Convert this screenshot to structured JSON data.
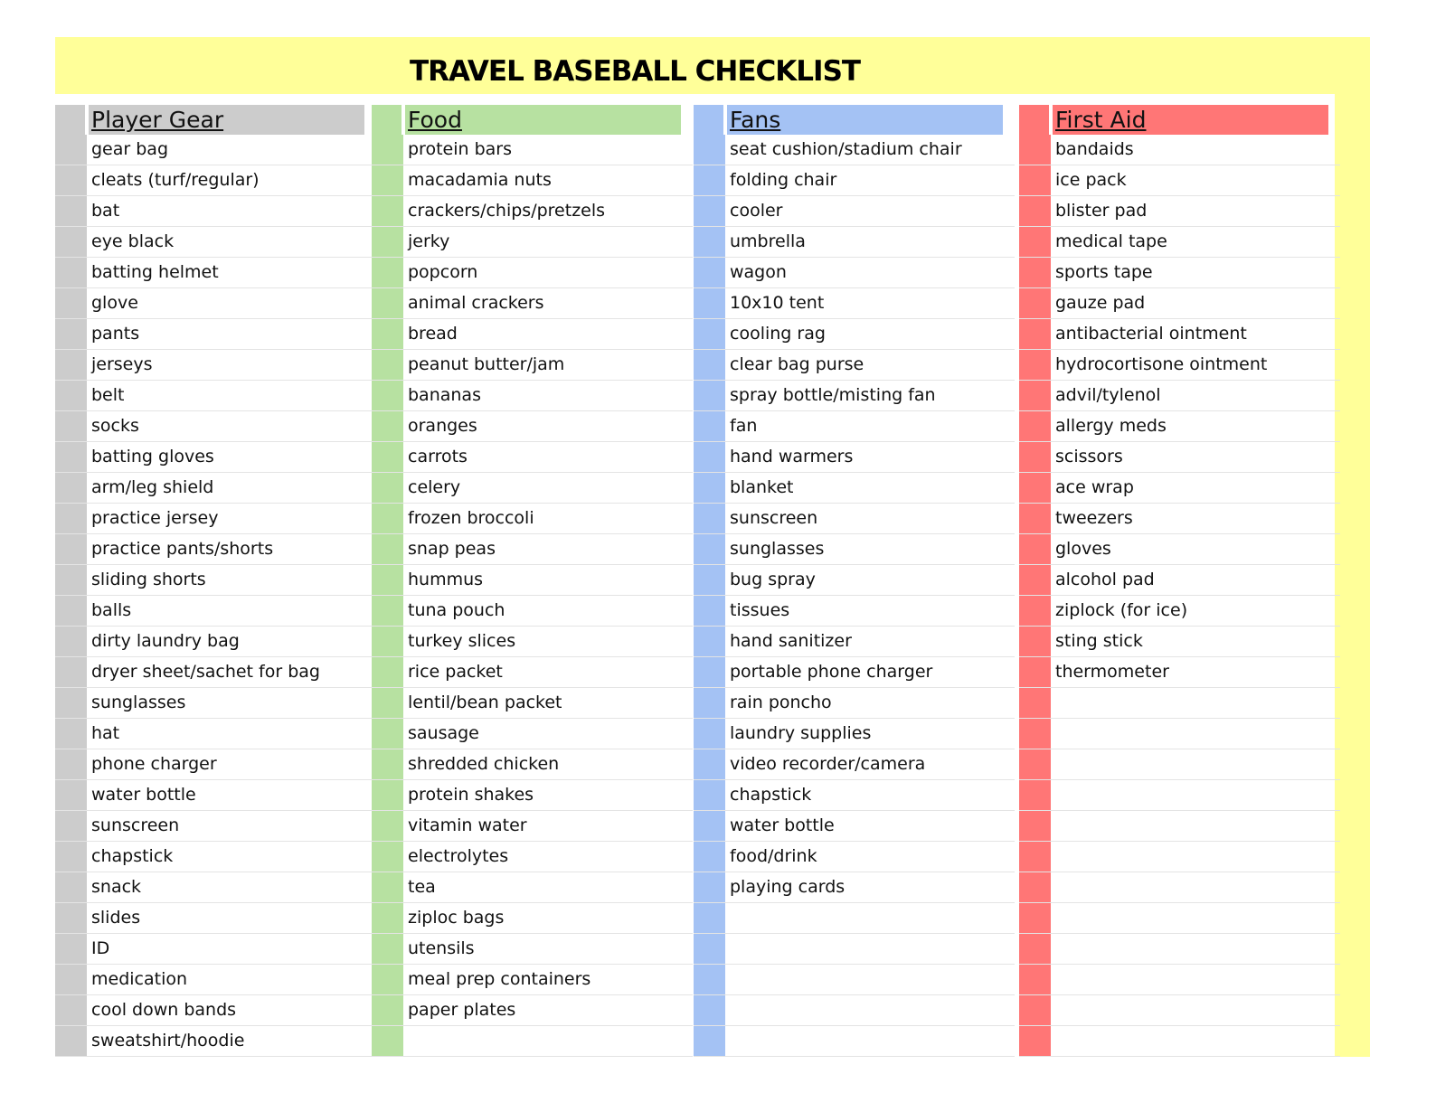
{
  "title": "TRAVEL BASEBALL CHECKLIST",
  "colors": {
    "background": "#ffff99",
    "gear": "#cccccc",
    "food": "#b7e1a1",
    "fans": "#a4c2f4",
    "first_aid": "#ff7676"
  },
  "columns": [
    {
      "heading": "Player Gear",
      "color": "#cccccc",
      "items": [
        "gear bag",
        "cleats (turf/regular)",
        "bat",
        "eye black",
        "batting helmet",
        "glove",
        "pants",
        "jerseys",
        "belt",
        "socks",
        "batting gloves",
        "arm/leg shield",
        "practice jersey",
        "practice pants/shorts",
        "sliding shorts",
        "balls",
        "dirty laundry bag",
        "dryer sheet/sachet for bag",
        "sunglasses",
        "hat",
        "phone charger",
        "water bottle",
        "sunscreen",
        "chapstick",
        "snack",
        "slides",
        "ID",
        "medication",
        "cool down bands",
        "sweatshirt/hoodie"
      ]
    },
    {
      "heading": "Food",
      "color": "#b7e1a1",
      "items": [
        "protein bars",
        "macadamia nuts",
        "crackers/chips/pretzels",
        "jerky",
        "popcorn",
        "animal crackers",
        "bread",
        "peanut butter/jam",
        "bananas",
        "oranges",
        "carrots",
        "celery",
        "frozen broccoli",
        "snap peas",
        "hummus",
        "tuna pouch",
        "turkey slices",
        "rice packet",
        "lentil/bean packet",
        "sausage",
        "shredded chicken",
        "protein shakes",
        "vitamin water",
        "electrolytes",
        "tea",
        "ziploc bags",
        "utensils",
        "meal prep containers",
        "paper plates",
        ""
      ]
    },
    {
      "heading": "Fans",
      "color": "#a4c2f4",
      "items": [
        "seat cushion/stadium chair",
        "folding chair",
        "cooler",
        "umbrella",
        "wagon",
        "10x10 tent",
        "cooling rag",
        "clear bag purse",
        "spray bottle/misting fan",
        "fan",
        "hand warmers",
        "blanket",
        "sunscreen",
        "sunglasses",
        "bug spray",
        "tissues",
        "hand sanitizer",
        "portable phone charger",
        "rain poncho",
        "laundry supplies",
        "video recorder/camera",
        "chapstick",
        "water bottle",
        "food/drink",
        "playing cards",
        "",
        "",
        "",
        "",
        ""
      ]
    },
    {
      "heading": "First Aid",
      "color": "#ff7676",
      "items": [
        "bandaids",
        "ice pack",
        "blister pad",
        "medical tape",
        "sports tape",
        "gauze pad",
        "antibacterial ointment",
        "hydrocortisone ointment",
        "advil/tylenol",
        "allergy meds",
        "scissors",
        "ace wrap",
        "tweezers",
        "gloves",
        "alcohol pad",
        "ziplock (for ice)",
        "sting stick",
        "thermometer",
        "",
        "",
        "",
        "",
        "",
        "",
        "",
        "",
        "",
        "",
        "",
        ""
      ]
    }
  ]
}
